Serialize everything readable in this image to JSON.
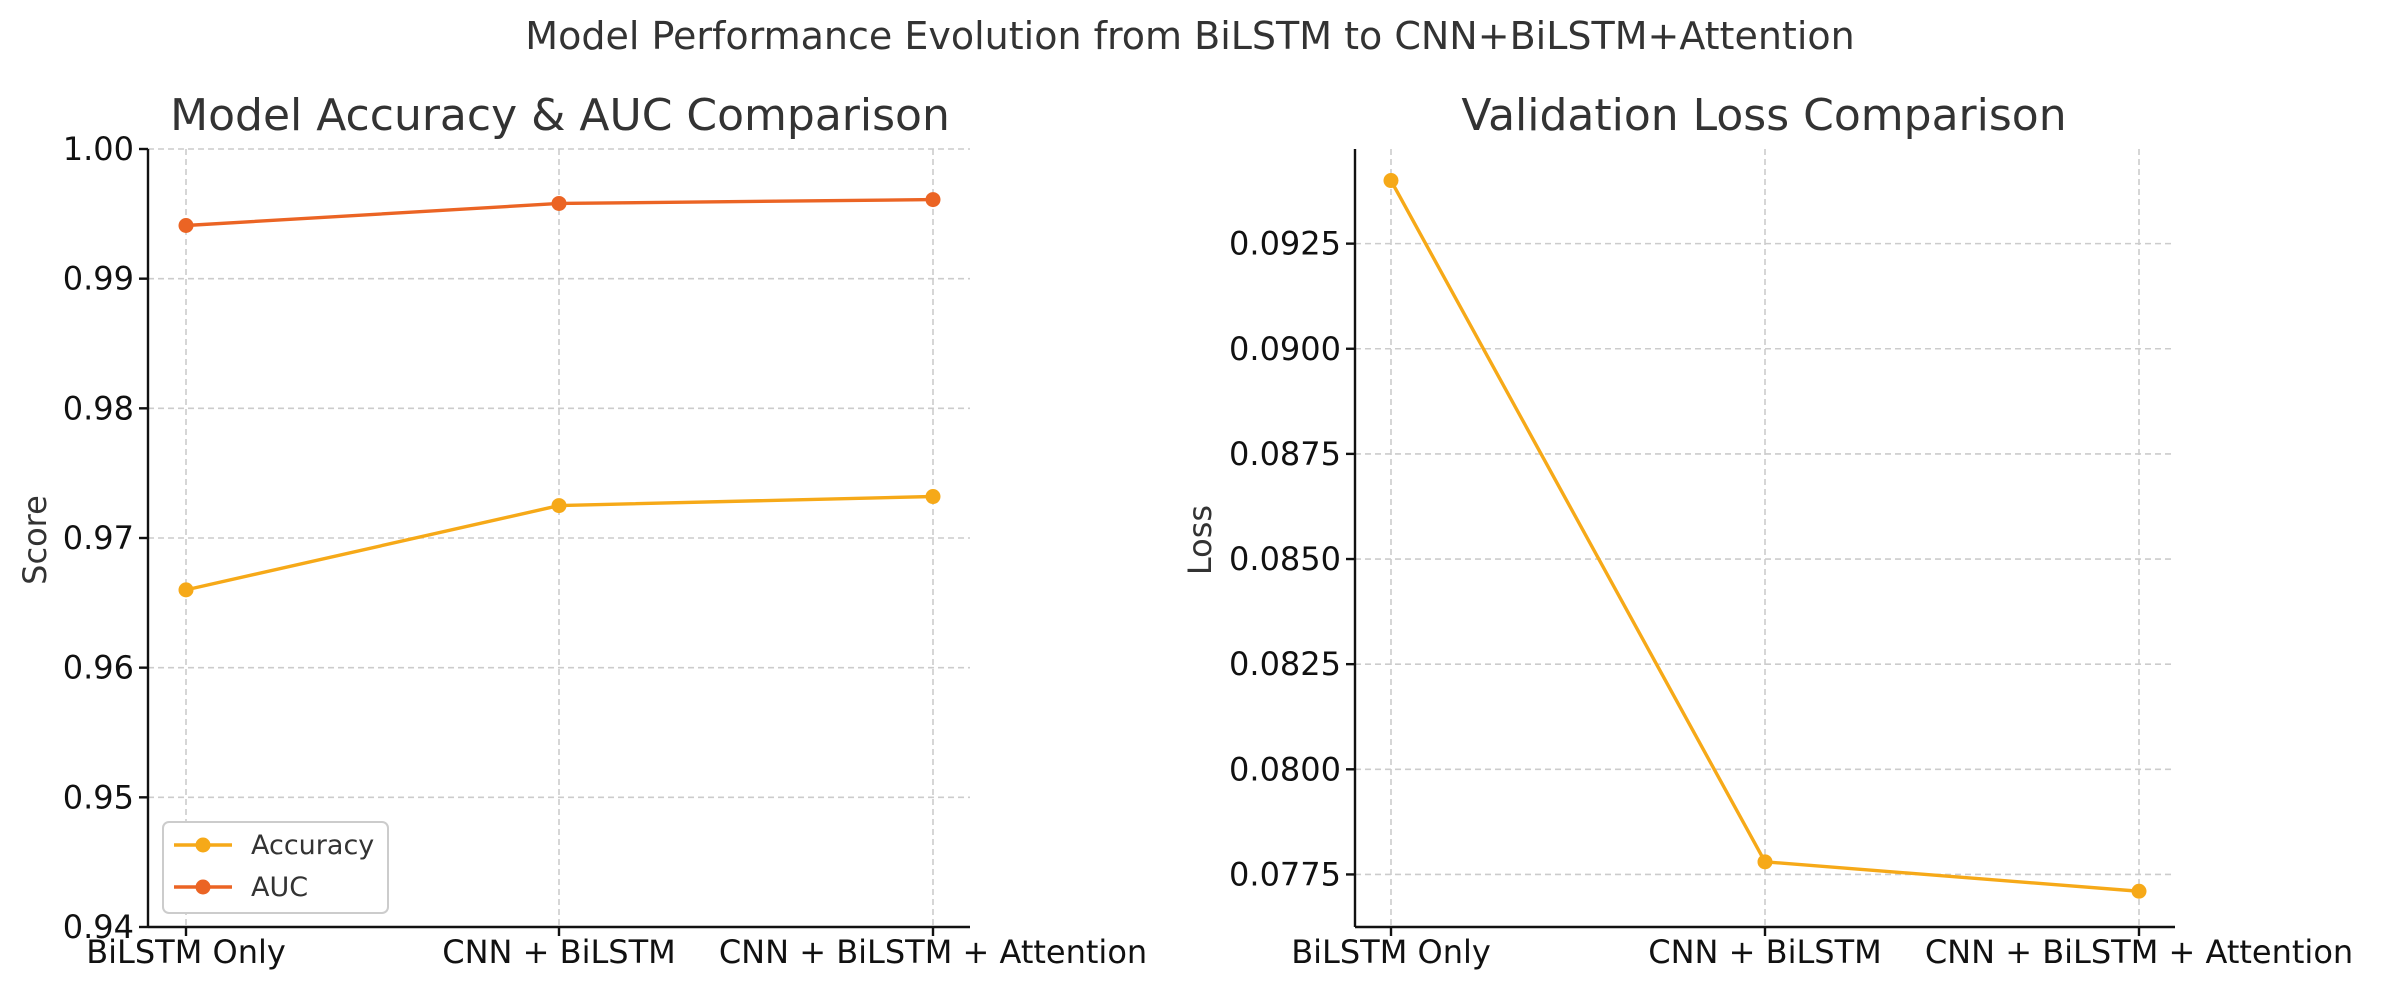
{
  "figure_title": "Model Performance Evolution from BiLSTM to CNN+BiLSTM+Attention",
  "chart_data": [
    {
      "type": "line",
      "title": "Model Accuracy & AUC Comparison",
      "xlabel": "",
      "ylabel": "Score",
      "categories": [
        "BiLSTM Only",
        "CNN + BiLSTM",
        "CNN + BiLSTM + Attention"
      ],
      "ylim": [
        0.94,
        1.0
      ],
      "yticks": [
        "0.94",
        "0.95",
        "0.96",
        "0.97",
        "0.98",
        "0.99",
        "1.00"
      ],
      "grid": true,
      "legend_position": "lower-left",
      "series": [
        {
          "name": "Accuracy",
          "color": "#F6A918",
          "values": [
            0.966,
            0.9725,
            0.9732
          ]
        },
        {
          "name": "AUC",
          "color": "#EB6424",
          "values": [
            0.9941,
            0.9958,
            0.9961
          ]
        }
      ]
    },
    {
      "type": "line",
      "title": "Validation Loss Comparison",
      "xlabel": "",
      "ylabel": "Loss",
      "categories": [
        "BiLSTM Only",
        "CNN + BiLSTM",
        "CNN + BiLSTM + Attention"
      ],
      "ylim": [
        0.07625,
        0.09475
      ],
      "yticks": [
        "0.0775",
        "0.0800",
        "0.0825",
        "0.0850",
        "0.0875",
        "0.0900",
        "0.0925"
      ],
      "grid": true,
      "series": [
        {
          "color": "#F6A918",
          "values": [
            0.094,
            0.0778,
            0.0771
          ]
        }
      ]
    }
  ]
}
